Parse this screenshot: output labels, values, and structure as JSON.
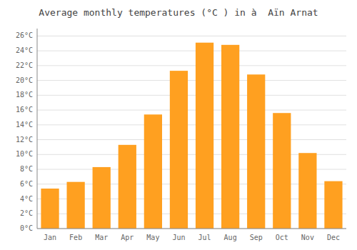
{
  "chart_data": {
    "type": "bar",
    "title": "Average monthly temperatures (°C ) in à  Aïn Arnat",
    "categories": [
      "Jan",
      "Feb",
      "Mar",
      "Apr",
      "May",
      "Jun",
      "Jul",
      "Aug",
      "Sep",
      "Oct",
      "Nov",
      "Dec"
    ],
    "values": [
      5.4,
      6.3,
      8.3,
      11.3,
      15.4,
      21.3,
      25.1,
      24.8,
      20.8,
      15.6,
      10.2,
      6.4
    ],
    "color": "#FFA020",
    "ylim": [
      0,
      27
    ],
    "yticks": [
      {
        "value": 0,
        "label": "0°C"
      },
      {
        "value": 2,
        "label": "2°C"
      },
      {
        "value": 4,
        "label": "4°C"
      },
      {
        "value": 6,
        "label": "6°C"
      },
      {
        "value": 8,
        "label": "8°C"
      },
      {
        "value": 10,
        "label": "10°C"
      },
      {
        "value": 12,
        "label": "12°C"
      },
      {
        "value": 14,
        "label": "14°C"
      },
      {
        "value": 16,
        "label": "16°C"
      },
      {
        "value": 18,
        "label": "18°C"
      },
      {
        "value": 20,
        "label": "20°C"
      },
      {
        "value": 22,
        "label": "22°C"
      },
      {
        "value": 24,
        "label": "24°C"
      },
      {
        "value": 26,
        "label": "26°C"
      }
    ],
    "grid": true
  }
}
